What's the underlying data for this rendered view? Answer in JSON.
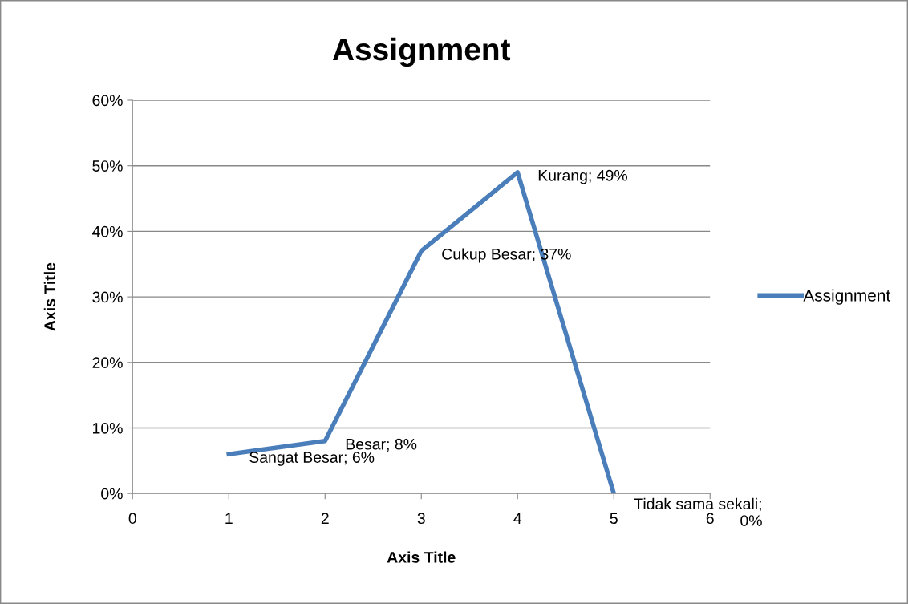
{
  "chart_data": {
    "type": "line",
    "title": "Assignment",
    "xlabel": "Axis Title",
    "ylabel": "Axis Title",
    "x": [
      1,
      2,
      3,
      4,
      5
    ],
    "series": [
      {
        "name": "Assignment",
        "color": "#4a7ebb",
        "values": [
          6,
          8,
          37,
          49,
          0
        ],
        "value_labels": [
          "Sangat Besar; 6%",
          "Besar; 8%",
          "Cukup Besar; 37%",
          "Kurang; 49%",
          "Tidak sama sekali;\n0%"
        ]
      }
    ],
    "xlim": [
      0,
      6
    ],
    "xticks": [
      0,
      1,
      2,
      3,
      4,
      5,
      6
    ],
    "ylim": [
      0,
      60
    ],
    "yticks": [
      {
        "value": 0,
        "label": "0%"
      },
      {
        "value": 10,
        "label": "10%"
      },
      {
        "value": 20,
        "label": "20%"
      },
      {
        "value": 30,
        "label": "30%"
      },
      {
        "value": 40,
        "label": "40%"
      },
      {
        "value": 50,
        "label": "50%"
      },
      {
        "value": 60,
        "label": "60%"
      }
    ],
    "grid": "y",
    "legend": "right",
    "marker": "none",
    "line_style": "solid"
  }
}
